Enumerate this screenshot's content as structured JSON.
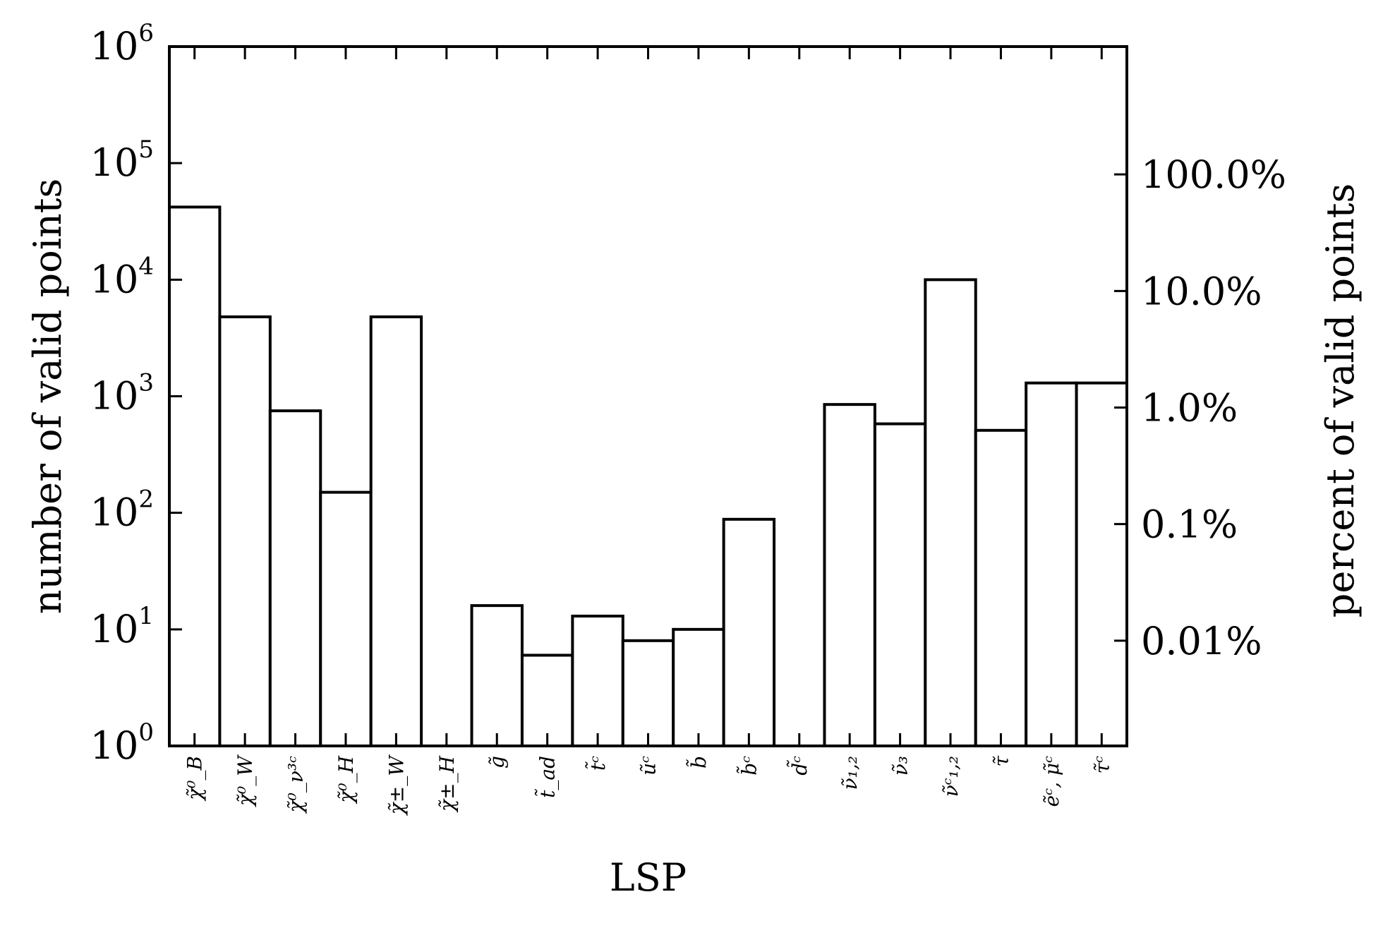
{
  "chart_data": {
    "type": "bar",
    "xlabel": "LSP",
    "ylabel": "number of valid points",
    "ylabel_right": "percent of valid points",
    "yscale": "log",
    "ylim": [
      1,
      1000000
    ],
    "grid": false,
    "legend": "none",
    "bar_fill": "#ffffff",
    "bar_stroke": "#000000",
    "yticks": [
      {
        "base": "10",
        "exp": "0"
      },
      {
        "base": "10",
        "exp": "1"
      },
      {
        "base": "10",
        "exp": "2"
      },
      {
        "base": "10",
        "exp": "3"
      },
      {
        "base": "10",
        "exp": "4"
      },
      {
        "base": "10",
        "exp": "5"
      },
      {
        "base": "10",
        "exp": "6"
      }
    ],
    "yticks_right": [
      {
        "label": "0.01%",
        "value": 8
      },
      {
        "label": "0.1%",
        "value": 80
      },
      {
        "label": "1.0%",
        "value": 800
      },
      {
        "label": "10.0%",
        "value": 8000
      },
      {
        "label": "100.0%",
        "value": 80000
      }
    ],
    "categories": [
      "χ̃⁰_B",
      "χ̃⁰_W",
      "χ̃⁰_ν³ᶜ",
      "χ̃⁰_H",
      "χ̃±_W",
      "χ̃±_H",
      "g̃",
      "t̃_ad",
      "t̃ᶜ",
      "ũᶜ",
      "b̃",
      "b̃ᶜ",
      "d̃ᶜ",
      "ν̃₁,₂",
      "ν̃₃",
      "ν̃ᶜ₁,₂",
      "τ̃",
      "ẽᶜ, μ̃ᶜ",
      "τ̃ᶜ"
    ],
    "values": [
      42000,
      4800,
      750,
      150,
      4800,
      0,
      16,
      6,
      13,
      8,
      10,
      88,
      0,
      850,
      580,
      10000,
      510,
      1300,
      1300
    ]
  }
}
